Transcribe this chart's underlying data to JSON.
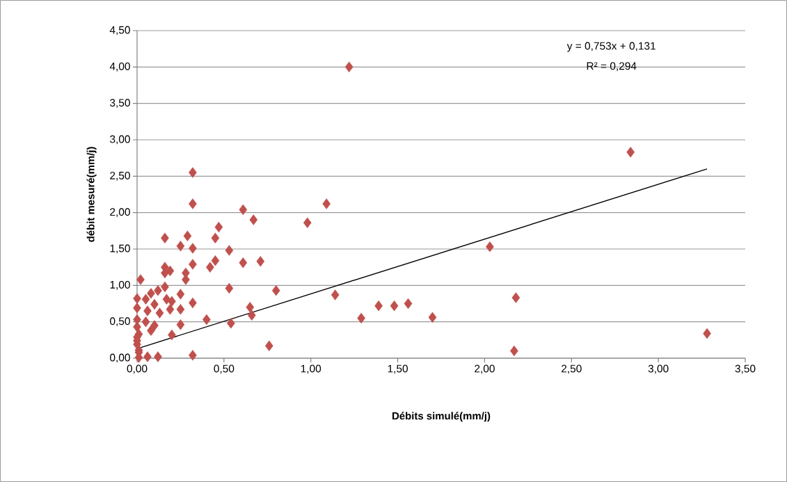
{
  "chart_data": {
    "type": "scatter",
    "xlabel": "Débits simulé(mm/j)",
    "ylabel": "débit mesuré(mm/j)",
    "annotations": [
      "y = 0,753x + 0,131",
      "R² = 0,294"
    ],
    "xlim": [
      0,
      3.5
    ],
    "ylim": [
      0,
      4.5
    ],
    "xticks": [
      {
        "value": 0,
        "label": "0,00"
      },
      {
        "value": 0.5,
        "label": "0,50"
      },
      {
        "value": 1,
        "label": "1,00"
      },
      {
        "value": 1.5,
        "label": "1,50"
      },
      {
        "value": 2,
        "label": "2,00"
      },
      {
        "value": 2.5,
        "label": "2,50"
      },
      {
        "value": 3,
        "label": "3,00"
      },
      {
        "value": 3.5,
        "label": "3,50"
      }
    ],
    "yticks": [
      {
        "value": 0,
        "label": "0,00"
      },
      {
        "value": 0.5,
        "label": "0,50"
      },
      {
        "value": 1,
        "label": "1,00"
      },
      {
        "value": 1.5,
        "label": "1,50"
      },
      {
        "value": 2,
        "label": "2,00"
      },
      {
        "value": 2.5,
        "label": "2,50"
      },
      {
        "value": 3,
        "label": "3,00"
      },
      {
        "value": 3.5,
        "label": "3,50"
      },
      {
        "value": 4,
        "label": "4,00"
      },
      {
        "value": 4.5,
        "label": "4,50"
      }
    ],
    "grid": "y",
    "series": [
      {
        "color": "#c0504d",
        "marker": "diamond",
        "x": [
          1.22,
          2.84,
          3.28,
          2.17,
          2.18,
          2.03,
          1.7,
          1.56,
          1.48,
          1.39,
          1.29,
          1.14,
          1.09,
          0.98,
          0.8,
          0.76,
          0.71,
          0.67,
          0.66,
          0.65,
          0.61,
          0.61,
          0.54,
          0.53,
          0.53,
          0.47,
          0.45,
          0.45,
          0.42,
          0.4,
          0.32,
          0.32,
          0.32,
          0.32,
          0.32,
          0.32,
          0.29,
          0.28,
          0.28,
          0.25,
          0.25,
          0.25,
          0.25,
          0.2,
          0.2,
          0.19,
          0.19,
          0.17,
          0.16,
          0.16,
          0.16,
          0.16,
          0.13,
          0.12,
          0.12,
          0.1,
          0.1,
          0.08,
          0.08,
          0.06,
          0.06,
          0.05,
          0.05,
          0.02,
          0.01,
          0.01,
          0.01,
          0.0,
          0.0,
          0.0,
          0.0,
          0.0,
          0.0,
          0.01,
          0.0
        ],
        "values": [
          4.0,
          2.83,
          0.34,
          0.1,
          0.83,
          1.53,
          0.56,
          0.75,
          0.72,
          0.72,
          0.55,
          0.87,
          2.12,
          1.86,
          0.93,
          0.17,
          1.33,
          1.9,
          0.59,
          0.7,
          2.04,
          1.31,
          0.48,
          1.48,
          0.96,
          1.8,
          1.65,
          1.34,
          1.25,
          0.53,
          2.55,
          2.12,
          1.51,
          1.29,
          0.04,
          0.76,
          1.68,
          1.17,
          1.08,
          1.54,
          0.88,
          0.67,
          0.46,
          0.32,
          0.78,
          1.2,
          0.67,
          0.81,
          1.65,
          1.25,
          1.17,
          0.98,
          0.62,
          0.93,
          0.02,
          0.74,
          0.45,
          0.89,
          0.38,
          0.65,
          0.02,
          0.81,
          0.5,
          1.08,
          0.33,
          0.11,
          0.01,
          0.82,
          0.69,
          0.53,
          0.43,
          0.24,
          0.19,
          0.08,
          0.29
        ]
      },
      {
        "type": "line",
        "color": "#000000",
        "marker": "none",
        "line_style": "solid",
        "x": [
          0,
          3.28
        ],
        "values": [
          0.13,
          2.6
        ]
      }
    ]
  }
}
